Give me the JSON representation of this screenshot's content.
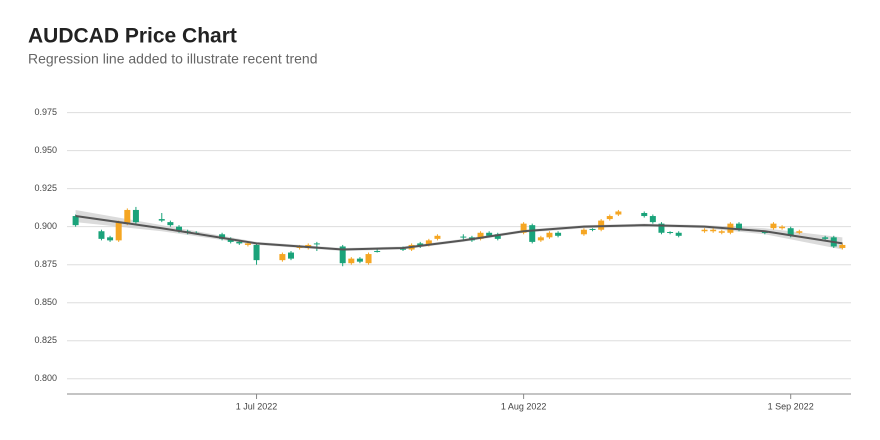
{
  "chart_data": {
    "type": "candlestick",
    "title": "AUDCAD Price Chart",
    "subtitle": "Regression line added to illustrate recent trend",
    "up_color": "#f5a623",
    "down_color": "#1aa37a",
    "grid": true,
    "ylim": [
      0.79,
      0.98
    ],
    "yticks": [
      {
        "value": 0.8,
        "label": "0.800"
      },
      {
        "value": 0.825,
        "label": "0.825"
      },
      {
        "value": 0.85,
        "label": "0.850"
      },
      {
        "value": 0.875,
        "label": "0.875"
      },
      {
        "value": 0.9,
        "label": "0.900"
      },
      {
        "value": 0.925,
        "label": "0.925"
      },
      {
        "value": 0.95,
        "label": "0.950"
      },
      {
        "value": 0.975,
        "label": "0.975"
      }
    ],
    "xlim": [
      "2022-06-09",
      "2022-09-08"
    ],
    "xticks": [
      {
        "value": "2022-07-01",
        "label": "1 Jul 2022"
      },
      {
        "value": "2022-08-01",
        "label": "1 Aug 2022"
      },
      {
        "value": "2022-09-01",
        "label": "1 Sep 2022"
      }
    ],
    "x": [
      "2022-06-10",
      "2022-06-13",
      "2022-06-14",
      "2022-06-15",
      "2022-06-16",
      "2022-06-17",
      "2022-06-20",
      "2022-06-21",
      "2022-06-22",
      "2022-06-23",
      "2022-06-24",
      "2022-06-27",
      "2022-06-28",
      "2022-06-29",
      "2022-06-30",
      "2022-07-01",
      "2022-07-04",
      "2022-07-05",
      "2022-07-06",
      "2022-07-07",
      "2022-07-08",
      "2022-07-11",
      "2022-07-12",
      "2022-07-13",
      "2022-07-14",
      "2022-07-15",
      "2022-07-18",
      "2022-07-19",
      "2022-07-20",
      "2022-07-21",
      "2022-07-22",
      "2022-07-25",
      "2022-07-26",
      "2022-07-27",
      "2022-07-28",
      "2022-07-29",
      "2022-08-01",
      "2022-08-02",
      "2022-08-03",
      "2022-08-04",
      "2022-08-05",
      "2022-08-08",
      "2022-08-09",
      "2022-08-10",
      "2022-08-11",
      "2022-08-12",
      "2022-08-15",
      "2022-08-16",
      "2022-08-17",
      "2022-08-18",
      "2022-08-19",
      "2022-08-22",
      "2022-08-23",
      "2022-08-24",
      "2022-08-25",
      "2022-08-26",
      "2022-08-29",
      "2022-08-30",
      "2022-08-31",
      "2022-09-01",
      "2022-09-02",
      "2022-09-05",
      "2022-09-06",
      "2022-09-07"
    ],
    "open": [
      0.907,
      0.897,
      0.893,
      0.891,
      0.902,
      0.911,
      0.905,
      0.903,
      0.9,
      0.897,
      0.896,
      0.895,
      0.892,
      0.89,
      0.888,
      0.888,
      0.878,
      0.883,
      0.886,
      0.886,
      0.889,
      0.887,
      0.876,
      0.879,
      0.876,
      0.884,
      0.8855,
      0.885,
      0.889,
      0.888,
      0.892,
      0.8935,
      0.893,
      0.892,
      0.896,
      0.895,
      0.896,
      0.901,
      0.891,
      0.893,
      0.896,
      0.895,
      0.8985,
      0.898,
      0.905,
      0.908,
      0.909,
      0.907,
      0.902,
      0.8965,
      0.896,
      0.897,
      0.897,
      0.896,
      0.896,
      0.902,
      0.8965,
      0.899,
      0.899,
      0.899,
      0.896,
      0.893,
      0.893,
      0.886
    ],
    "high": [
      0.908,
      0.898,
      0.894,
      0.904,
      0.912,
      0.913,
      0.909,
      0.904,
      0.901,
      0.898,
      0.897,
      0.896,
      0.893,
      0.891,
      0.89,
      0.889,
      0.883,
      0.884,
      0.888,
      0.889,
      0.89,
      0.888,
      0.88,
      0.88,
      0.883,
      0.885,
      0.887,
      0.889,
      0.89,
      0.892,
      0.895,
      0.895,
      0.894,
      0.897,
      0.897,
      0.896,
      0.903,
      0.902,
      0.894,
      0.897,
      0.897,
      0.899,
      0.899,
      0.905,
      0.908,
      0.911,
      0.91,
      0.908,
      0.903,
      0.897,
      0.897,
      0.899,
      0.899,
      0.898,
      0.903,
      0.903,
      0.897,
      0.903,
      0.901,
      0.9,
      0.898,
      0.894,
      0.894,
      0.889
    ],
    "low": [
      0.9,
      0.891,
      0.89,
      0.89,
      0.901,
      0.902,
      0.903,
      0.9,
      0.896,
      0.895,
      0.895,
      0.891,
      0.889,
      0.888,
      0.887,
      0.875,
      0.877,
      0.878,
      0.885,
      0.885,
      0.884,
      0.874,
      0.875,
      0.876,
      0.875,
      0.883,
      0.884,
      0.884,
      0.886,
      0.887,
      0.891,
      0.891,
      0.89,
      0.891,
      0.893,
      0.891,
      0.895,
      0.889,
      0.89,
      0.892,
      0.893,
      0.894,
      0.897,
      0.897,
      0.904,
      0.907,
      0.906,
      0.902,
      0.895,
      0.895,
      0.893,
      0.896,
      0.896,
      0.895,
      0.895,
      0.897,
      0.895,
      0.898,
      0.898,
      0.893,
      0.895,
      0.891,
      0.886,
      0.885
    ],
    "close": [
      0.901,
      0.892,
      0.891,
      0.903,
      0.911,
      0.903,
      0.904,
      0.901,
      0.897,
      0.896,
      0.8955,
      0.892,
      0.89,
      0.889,
      0.889,
      0.878,
      0.882,
      0.879,
      0.887,
      0.888,
      0.8885,
      0.876,
      0.879,
      0.877,
      0.882,
      0.8835,
      0.885,
      0.888,
      0.887,
      0.891,
      0.894,
      0.893,
      0.891,
      0.896,
      0.894,
      0.892,
      0.902,
      0.89,
      0.893,
      0.896,
      0.894,
      0.898,
      0.898,
      0.904,
      0.907,
      0.91,
      0.907,
      0.903,
      0.896,
      0.896,
      0.894,
      0.898,
      0.898,
      0.897,
      0.902,
      0.898,
      0.896,
      0.902,
      0.9,
      0.894,
      0.897,
      0.892,
      0.887,
      0.888
    ],
    "regression": {
      "color": "#555555",
      "band_color": "#cccccc",
      "x": [
        "2022-06-10",
        "2022-06-20",
        "2022-07-01",
        "2022-07-11",
        "2022-07-18",
        "2022-07-25",
        "2022-08-01",
        "2022-08-08",
        "2022-08-15",
        "2022-08-22",
        "2022-08-29",
        "2022-09-07"
      ],
      "values": [
        0.907,
        0.899,
        0.889,
        0.885,
        0.886,
        0.891,
        0.897,
        0.9,
        0.901,
        0.9,
        0.897,
        0.889
      ],
      "lower": [
        0.903,
        0.897,
        0.888,
        0.884,
        0.885,
        0.89,
        0.896,
        0.899,
        0.9,
        0.899,
        0.895,
        0.885
      ],
      "upper": [
        0.911,
        0.901,
        0.89,
        0.886,
        0.887,
        0.892,
        0.898,
        0.901,
        0.902,
        0.901,
        0.899,
        0.893
      ]
    }
  }
}
